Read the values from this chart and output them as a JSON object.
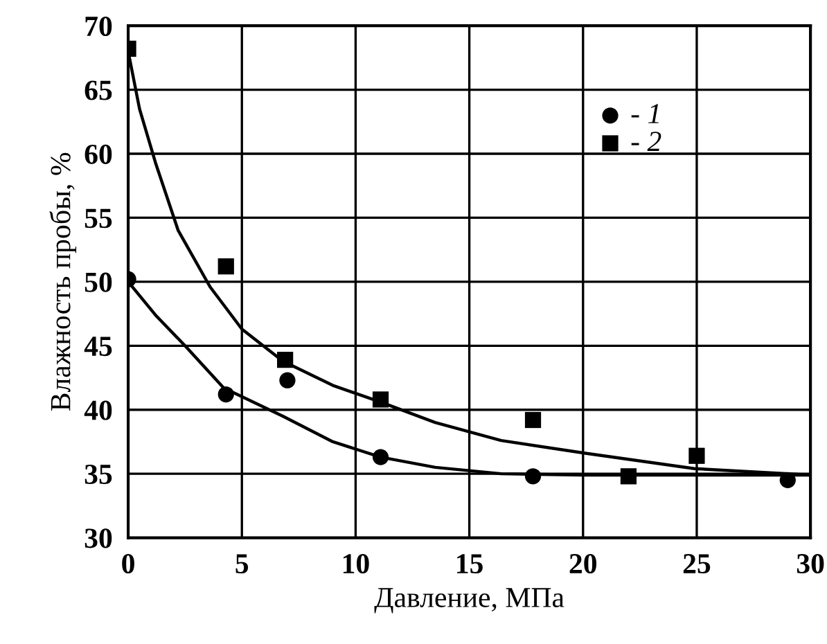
{
  "chart_data": {
    "type": "scatter",
    "xlabel": "Давление, МПа",
    "ylabel": "Влажность пробы, %",
    "xlim": [
      0,
      30
    ],
    "ylim": [
      30,
      70
    ],
    "xticks": [
      0,
      5,
      10,
      15,
      20,
      25,
      30
    ],
    "yticks": [
      30,
      35,
      40,
      45,
      50,
      55,
      60,
      65,
      70
    ],
    "grid": true,
    "legend": "top right",
    "series": [
      {
        "name": "- 1",
        "color": "#000000",
        "marker": "circle",
        "x": [
          0,
          4.3,
          7,
          11.1,
          17.8,
          29
        ],
        "values": [
          50.2,
          41.2,
          42.3,
          36.3,
          34.8,
          34.5
        ]
      },
      {
        "name": "- 2",
        "color": "#000000",
        "marker": "square",
        "x": [
          0,
          4.3,
          6.9,
          11.1,
          17.8,
          22,
          25
        ],
        "values": [
          68.2,
          51.2,
          43.9,
          40.8,
          39.2,
          34.8,
          36.4
        ]
      },
      {
        "type": "line",
        "color": "#000000",
        "marker": "none",
        "x": [
          0,
          1.2,
          2.5,
          4.2,
          6.8,
          9,
          11.1,
          13.5,
          16.4,
          20,
          25,
          30
        ],
        "values": [
          50,
          47.4,
          45,
          41.7,
          39.5,
          37.5,
          36.3,
          35.5,
          35,
          34.9,
          34.9,
          34.9
        ]
      },
      {
        "type": "line",
        "color": "#000000",
        "marker": "none",
        "x": [
          0,
          0.5,
          1.2,
          2.2,
          3.6,
          5,
          6.8,
          9,
          11.1,
          13.5,
          16.4,
          20.1,
          24.9,
          30
        ],
        "values": [
          68,
          63.5,
          59.3,
          54,
          49.6,
          46.3,
          43.8,
          41.9,
          40.6,
          39,
          37.6,
          36.6,
          35.4,
          34.9
        ]
      }
    ]
  }
}
